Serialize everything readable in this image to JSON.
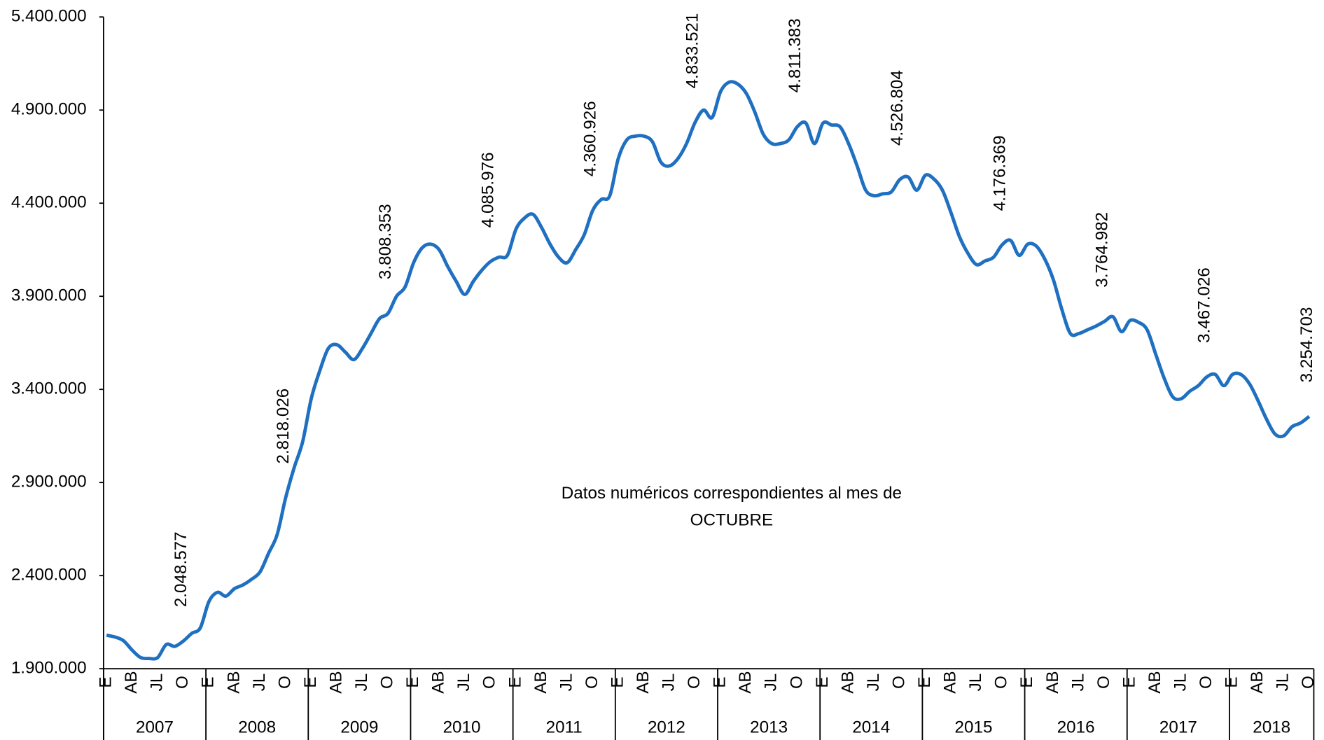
{
  "chart_data": {
    "type": "line",
    "annotation": [
      "Datos numéricos correspondientes al mes de",
      "OCTUBRE"
    ],
    "categories": [
      "E",
      null,
      null,
      "AB",
      null,
      null,
      "JL",
      null,
      null,
      "O",
      null,
      null,
      "E",
      null,
      null,
      "AB",
      null,
      null,
      "JL",
      null,
      null,
      "O",
      null,
      null,
      "E",
      null,
      null,
      "AB",
      null,
      null,
      "JL",
      null,
      null,
      "O",
      null,
      null,
      "E",
      null,
      null,
      "AB",
      null,
      null,
      "JL",
      null,
      null,
      "O",
      null,
      null,
      "E",
      null,
      null,
      "AB",
      null,
      null,
      "JL",
      null,
      null,
      "O",
      null,
      null,
      "E",
      null,
      null,
      "AB",
      null,
      null,
      "JL",
      null,
      null,
      "O",
      null,
      null,
      "E",
      null,
      null,
      "AB",
      null,
      null,
      "JL",
      null,
      null,
      "O",
      null,
      null,
      "E",
      null,
      null,
      "AB",
      null,
      null,
      "JL",
      null,
      null,
      "O",
      null,
      null,
      "E",
      null,
      null,
      "AB",
      null,
      null,
      "JL",
      null,
      null,
      "O",
      null,
      null,
      "E",
      null,
      null,
      "AB",
      null,
      null,
      "JL",
      null,
      null,
      "O",
      null,
      null,
      "E",
      null,
      null,
      "AB",
      null,
      null,
      "JL",
      null,
      null,
      "O",
      null,
      null,
      "E",
      null,
      null,
      "AB",
      null,
      null,
      "JL",
      null,
      null,
      "O"
    ],
    "years": [
      "2007",
      "2008",
      "2009",
      "2010",
      "2011",
      "2012",
      "2013",
      "2014",
      "2015",
      "2016",
      "2017",
      "2018"
    ],
    "color": "#1f70c1",
    "values": [
      2080000,
      2070000,
      2050000,
      2000000,
      1960000,
      1955000,
      1960000,
      2030000,
      2020000,
      2048577,
      2090000,
      2120000,
      2260000,
      2310000,
      2290000,
      2330000,
      2350000,
      2380000,
      2420000,
      2520000,
      2620000,
      2818026,
      2980000,
      3120000,
      3350000,
      3500000,
      3620000,
      3640000,
      3600000,
      3560000,
      3620000,
      3700000,
      3780000,
      3808353,
      3900000,
      3950000,
      4080000,
      4160000,
      4180000,
      4150000,
      4060000,
      3980000,
      3910000,
      3980000,
      4040000,
      4085976,
      4110000,
      4120000,
      4260000,
      4320000,
      4340000,
      4270000,
      4180000,
      4110000,
      4080000,
      4150000,
      4230000,
      4360926,
      4420000,
      4440000,
      4640000,
      4740000,
      4760000,
      4760000,
      4730000,
      4620000,
      4600000,
      4640000,
      4720000,
      4833521,
      4900000,
      4860000,
      5000000,
      5050000,
      5040000,
      4990000,
      4890000,
      4770000,
      4720000,
      4720000,
      4740000,
      4811383,
      4830000,
      4720000,
      4830000,
      4820000,
      4810000,
      4720000,
      4600000,
      4470000,
      4440000,
      4450000,
      4460000,
      4526804,
      4540000,
      4470000,
      4550000,
      4530000,
      4470000,
      4350000,
      4220000,
      4130000,
      4070000,
      4090000,
      4110000,
      4176369,
      4200000,
      4120000,
      4180000,
      4170000,
      4100000,
      3990000,
      3830000,
      3700000,
      3700000,
      3720000,
      3740000,
      3764982,
      3790000,
      3710000,
      3770000,
      3760000,
      3720000,
      3590000,
      3460000,
      3360000,
      3350000,
      3390000,
      3420000,
      3467026,
      3480000,
      3420000,
      3480000,
      3480000,
      3430000,
      3340000,
      3240000,
      3160000,
      3150000,
      3200000,
      3220000,
      3254703
    ],
    "value_labels": [
      null,
      null,
      null,
      null,
      null,
      null,
      null,
      null,
      null,
      "2.048.577",
      null,
      null,
      null,
      null,
      null,
      null,
      null,
      null,
      null,
      null,
      null,
      "2.818.026",
      null,
      null,
      null,
      null,
      null,
      null,
      null,
      null,
      null,
      null,
      null,
      "3.808.353",
      null,
      null,
      null,
      null,
      null,
      null,
      null,
      null,
      null,
      null,
      null,
      "4.085.976",
      null,
      null,
      null,
      null,
      null,
      null,
      null,
      null,
      null,
      null,
      null,
      "4.360.926",
      null,
      null,
      null,
      null,
      null,
      null,
      null,
      null,
      null,
      null,
      null,
      "4.833.521",
      null,
      null,
      null,
      null,
      null,
      null,
      null,
      null,
      null,
      null,
      null,
      "4.811.383",
      null,
      null,
      null,
      null,
      null,
      null,
      null,
      null,
      null,
      null,
      null,
      "4.526.804",
      null,
      null,
      null,
      null,
      null,
      null,
      null,
      null,
      null,
      null,
      null,
      "4.176.369",
      null,
      null,
      null,
      null,
      null,
      null,
      null,
      null,
      null,
      null,
      null,
      "3.764.982",
      null,
      null,
      null,
      null,
      null,
      null,
      null,
      null,
      null,
      null,
      null,
      "3.467.026",
      null,
      null,
      null,
      null,
      null,
      null,
      null,
      null,
      null,
      null,
      null,
      "3.254.703"
    ],
    "ylim": [
      1900000,
      5400000
    ],
    "yticks": [
      {
        "value": 1900000,
        "label": "1.900.000"
      },
      {
        "value": 2400000,
        "label": "2.400.000"
      },
      {
        "value": 2900000,
        "label": "2.900.000"
      },
      {
        "value": 3400000,
        "label": "3.400.000"
      },
      {
        "value": 3900000,
        "label": "3.900.000"
      },
      {
        "value": 4400000,
        "label": "4.400.000"
      },
      {
        "value": 4900000,
        "label": "4.900.000"
      },
      {
        "value": 5400000,
        "label": "5.400.000"
      }
    ],
    "grid": false
  }
}
